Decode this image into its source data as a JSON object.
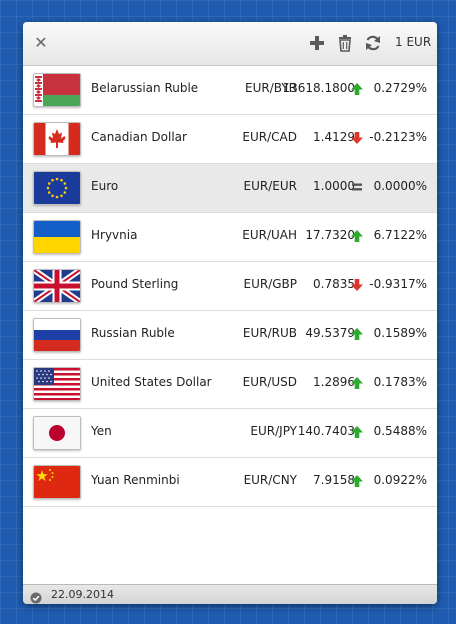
{
  "toolbar": {
    "close_icon": "close-icon",
    "add_icon": "plus-icon",
    "delete_icon": "trash-icon",
    "refresh_icon": "refresh-icon",
    "amount": "1 EUR"
  },
  "rates": [
    {
      "name": "Belarussian Ruble",
      "pair": "EUR/BYR",
      "rate": "13618.1800",
      "trend": "up",
      "change": "0.2729%",
      "flag": "belarus-flag"
    },
    {
      "name": "Canadian Dollar",
      "pair": "EUR/CAD",
      "rate": "1.4129",
      "trend": "down",
      "change": "-0.2123%",
      "flag": "canada-flag"
    },
    {
      "name": "Euro",
      "pair": "EUR/EUR",
      "rate": "1.0000",
      "trend": "equal",
      "change": "0.0000%",
      "flag": "eu-flag",
      "selected": true
    },
    {
      "name": "Hryvnia",
      "pair": "EUR/UAH",
      "rate": "17.7320",
      "trend": "up",
      "change": "6.7122%",
      "flag": "ukraine-flag"
    },
    {
      "name": "Pound Sterling",
      "pair": "EUR/GBP",
      "rate": "0.7835",
      "trend": "down",
      "change": "-0.9317%",
      "flag": "uk-flag"
    },
    {
      "name": "Russian Ruble",
      "pair": "EUR/RUB",
      "rate": "49.5379",
      "trend": "up",
      "change": "0.1589%",
      "flag": "russia-flag"
    },
    {
      "name": "United States Dollar",
      "pair": "EUR/USD",
      "rate": "1.2896",
      "trend": "up",
      "change": "0.1783%",
      "flag": "usa-flag"
    },
    {
      "name": "Yen",
      "pair": "EUR/JPY",
      "rate": "140.7403",
      "trend": "up",
      "change": "0.5488%",
      "flag": "japan-flag"
    },
    {
      "name": "Yuan Renminbi",
      "pair": "EUR/CNY",
      "rate": "7.9158",
      "trend": "up",
      "change": "0.0922%",
      "flag": "china-flag"
    }
  ],
  "status": {
    "icon": "check-circle-icon",
    "date": "22.09.2014"
  },
  "colors": {
    "up": "#2eaa2e",
    "down": "#e0352b",
    "equal": "#555555",
    "background": "#1f5cb0"
  }
}
